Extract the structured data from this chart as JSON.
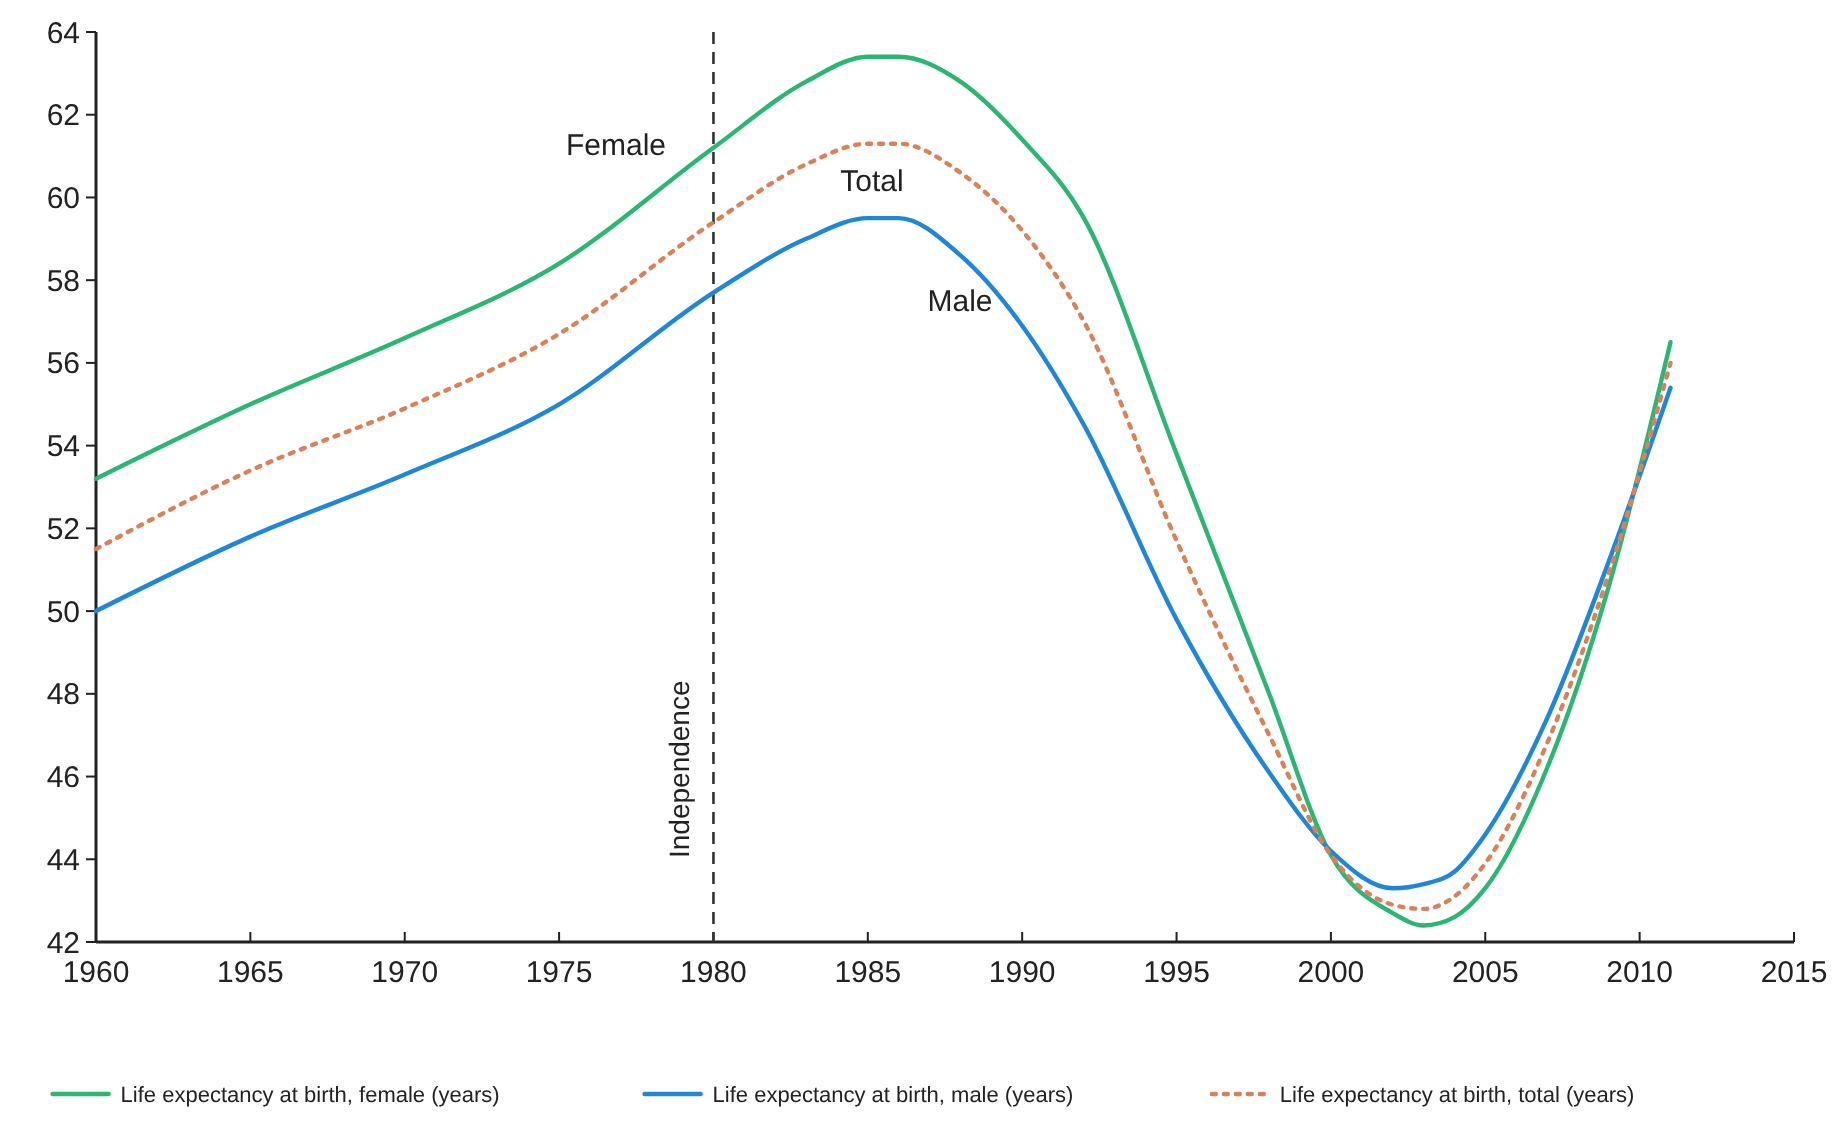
{
  "chart_data": {
    "type": "line",
    "x": [
      1960,
      1965,
      1970,
      1975,
      1980,
      1983,
      1985,
      1986,
      1988,
      1990,
      1992,
      1995,
      1998,
      2000,
      2002,
      2003,
      2004,
      2005,
      2007,
      2009,
      2011
    ],
    "series": [
      {
        "name": "Life expectancy at birth, female (years)",
        "color": "#2bb673",
        "line_style": "solid",
        "values": [
          53.2,
          55.0,
          56.6,
          58.4,
          61.2,
          62.8,
          63.4,
          63.4,
          62.8,
          61.4,
          59.5,
          53.8,
          48.0,
          44.1,
          42.7,
          42.4,
          42.6,
          43.3,
          46.2,
          50.6,
          56.5
        ]
      },
      {
        "name": "Life expectancy at birth, male (years)",
        "color": "#1f87d6",
        "line_style": "solid",
        "values": [
          50.0,
          51.8,
          53.3,
          55.0,
          57.7,
          59.0,
          59.5,
          59.5,
          58.6,
          56.9,
          54.5,
          49.8,
          46.1,
          44.2,
          43.3,
          43.4,
          43.7,
          44.6,
          47.4,
          51.2,
          55.4
        ]
      },
      {
        "name": "Life expectancy at birth, total (years)",
        "color": "#d9825a",
        "line_style": "dotted",
        "values": [
          51.5,
          53.4,
          54.9,
          56.7,
          59.4,
          60.8,
          61.3,
          61.3,
          60.6,
          59.2,
          57.0,
          51.7,
          47.0,
          44.1,
          42.9,
          42.8,
          43.1,
          43.9,
          46.8,
          50.9,
          56.0
        ]
      }
    ],
    "xlim": [
      1960,
      2015
    ],
    "xticks": [
      1960,
      1965,
      1970,
      1975,
      1980,
      1985,
      1990,
      1995,
      2000,
      2005,
      2010,
      2015
    ],
    "ylim": [
      42,
      64
    ],
    "yticks": [
      42,
      44,
      46,
      48,
      50,
      52,
      54,
      56,
      58,
      60,
      62,
      64
    ],
    "ref_lines": [
      {
        "axis": "x",
        "value": 1980,
        "label": "Independence",
        "color": "#333333",
        "line_style": "dashed"
      }
    ],
    "annotations": [
      "Female",
      "Total",
      "Male"
    ],
    "legend": "bottom",
    "grid": false,
    "marker": "none"
  }
}
